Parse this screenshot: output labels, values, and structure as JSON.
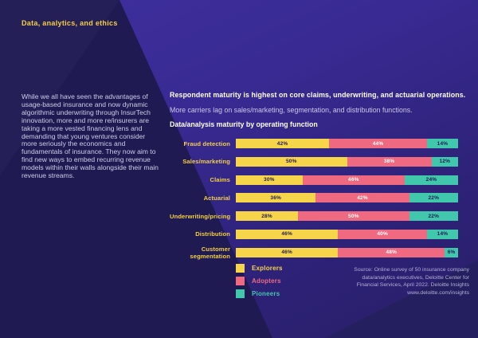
{
  "page": {
    "eyebrow": "Data, analytics, and ethics",
    "intro": "While we all have seen the advantages of usage-based insurance and now dynamic algorithmic underwriting through InsurTech innovation, more and more re/insurers are taking a more vested financing lens and demanding that young ventures consider more seriously the economics and fundamentals of insurance. They now aim to find new ways to embed recurring revenue models within their walls alongside their main revenue streams."
  },
  "figure": {
    "headline": "Respondent maturity is highest on core claims, underwriting, and actuarial operations.",
    "subheadline": "More carriers lag on sales/marketing, segmentation, and distribution functions.",
    "chart_title": "Data/analysis maturity by operating function",
    "source_text": "Source: Online survey of 50 insurance company\ndata/analytics executives, Deloitte Center for\nFinancial Services, April 2022. Deloitte Insights\nwww.deloitte.com/insights"
  },
  "colors": {
    "background_dark": "#1f1a52",
    "background_purple": "#382a92",
    "accent_yellow": "#f5cf45",
    "series_yellow": "#f7d54a",
    "series_pink": "#ef6a80",
    "series_teal": "#41c8ac"
  },
  "chart_data": {
    "type": "bar",
    "orientation": "horizontal",
    "stacked": true,
    "title": "Data/analysis maturity by operating function",
    "unit": "%",
    "xlim": [
      0,
      100
    ],
    "grid": false,
    "value_labels": "inside",
    "legend_position": "bottom-left",
    "categories": [
      "Fraud detection",
      "Sales/marketing",
      "Claims",
      "Actuarial",
      "Underwriting/pricing",
      "Distribution",
      "Customer segmentation"
    ],
    "series": [
      {
        "name": "Explorers",
        "color": "#f7d54a",
        "label_color": "#1f1a52",
        "values": [
          42,
          50,
          30,
          36,
          28,
          46,
          46
        ]
      },
      {
        "name": "Adopters",
        "color": "#ef6a80",
        "label_color": "#ffffff",
        "values": [
          44,
          38,
          46,
          42,
          50,
          40,
          48
        ]
      },
      {
        "name": "Pioneers",
        "color": "#41c8ac",
        "label_color": "#1f1a52",
        "values": [
          14,
          12,
          24,
          22,
          22,
          14,
          6
        ]
      }
    ]
  }
}
